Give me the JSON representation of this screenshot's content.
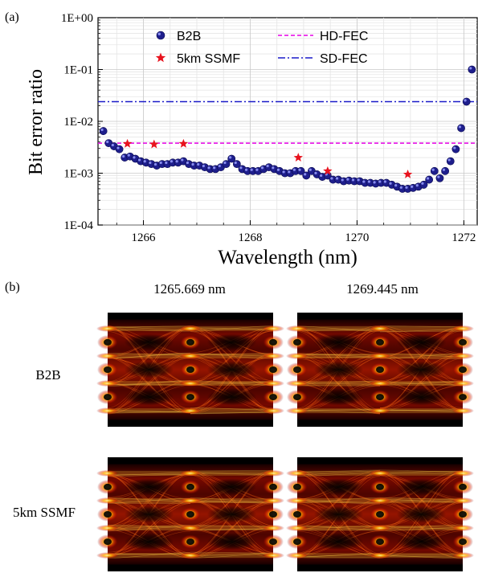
{
  "panel_labels": {
    "a": "(a)",
    "b": "(b)"
  },
  "chart_data": {
    "type": "scatter",
    "xlabel": "Wavelength (nm)",
    "ylabel": "Bit error ratio",
    "xlim": [
      1265.15,
      1272.25
    ],
    "ylim_log10": [
      -4,
      0
    ],
    "yscale": "log",
    "x_ticks": [
      1266,
      1268,
      1270,
      1272
    ],
    "x_tick_labels": [
      "1266",
      "1268",
      "1270",
      "1272"
    ],
    "y_ticks_log10": [
      -4,
      -3,
      -2,
      -1,
      0
    ],
    "y_tick_labels": [
      "1E-04",
      "1E-03",
      "1E-02",
      "1E-01",
      "1E+00"
    ],
    "grid": true,
    "legend": [
      {
        "key": "b2b",
        "label": "B2B",
        "marker": "circle"
      },
      {
        "key": "ssmf",
        "label": "5km SSMF",
        "marker": "star"
      },
      {
        "key": "hd",
        "label": "HD-FEC",
        "line": "dashed"
      },
      {
        "key": "sd",
        "label": "SD-FEC",
        "line": "dashdot"
      }
    ],
    "thresholds": [
      {
        "key": "hd",
        "name": "HD-FEC",
        "y": 0.0038,
        "color": "#e600e6"
      },
      {
        "key": "sd",
        "name": "SD-FEC",
        "y": 0.024,
        "color": "#1a1ac8"
      }
    ],
    "series": [
      {
        "key": "b2b",
        "name": "B2B",
        "marker": "circle",
        "color": "#1e1e8c",
        "x": [
          1265.25,
          1265.35,
          1265.45,
          1265.55,
          1265.65,
          1265.75,
          1265.85,
          1265.95,
          1266.05,
          1266.15,
          1266.25,
          1266.35,
          1266.45,
          1266.55,
          1266.65,
          1266.75,
          1266.85,
          1266.95,
          1267.05,
          1267.15,
          1267.25,
          1267.35,
          1267.45,
          1267.55,
          1267.65,
          1267.75,
          1267.85,
          1267.95,
          1268.05,
          1268.15,
          1268.25,
          1268.35,
          1268.45,
          1268.55,
          1268.65,
          1268.75,
          1268.85,
          1268.95,
          1269.05,
          1269.15,
          1269.25,
          1269.35,
          1269.45,
          1269.55,
          1269.65,
          1269.75,
          1269.85,
          1269.95,
          1270.05,
          1270.15,
          1270.25,
          1270.35,
          1270.45,
          1270.55,
          1270.65,
          1270.75,
          1270.85,
          1270.95,
          1271.05,
          1271.15,
          1271.25,
          1271.35,
          1271.45,
          1271.55,
          1271.65,
          1271.75,
          1271.85,
          1271.95,
          1272.05,
          1272.15
        ],
        "y": [
          0.0065,
          0.0038,
          0.0033,
          0.0029,
          0.002,
          0.0021,
          0.0019,
          0.0017,
          0.0016,
          0.0015,
          0.0014,
          0.0015,
          0.0015,
          0.0016,
          0.0016,
          0.0017,
          0.0015,
          0.0014,
          0.0014,
          0.0013,
          0.0012,
          0.0012,
          0.0013,
          0.0015,
          0.0019,
          0.0015,
          0.0012,
          0.0011,
          0.0011,
          0.0011,
          0.0012,
          0.0013,
          0.0012,
          0.0011,
          0.001,
          0.001,
          0.0011,
          0.0011,
          0.0009,
          0.0011,
          0.00095,
          0.00085,
          0.0009,
          0.00075,
          0.00075,
          0.0007,
          0.00072,
          0.0007,
          0.0007,
          0.00065,
          0.00065,
          0.00063,
          0.00065,
          0.00065,
          0.0006,
          0.00055,
          0.0005,
          0.0005,
          0.00052,
          0.00055,
          0.0006,
          0.00075,
          0.0011,
          0.0008,
          0.0011,
          0.0017,
          0.0029,
          0.0074,
          0.024,
          0.1
        ]
      },
      {
        "key": "ssmf",
        "name": "5km SSMF",
        "marker": "star",
        "color": "#e8131e",
        "x": [
          1265.7,
          1266.2,
          1266.75,
          1268.9,
          1269.45,
          1270.95
        ],
        "y": [
          0.0037,
          0.0036,
          0.0037,
          0.002,
          0.0011,
          0.00095
        ]
      }
    ]
  },
  "eye_panel": {
    "columns": [
      "1265.669 nm",
      "1269.445 nm"
    ],
    "rows": [
      "B2B",
      "5km SSMF"
    ]
  }
}
